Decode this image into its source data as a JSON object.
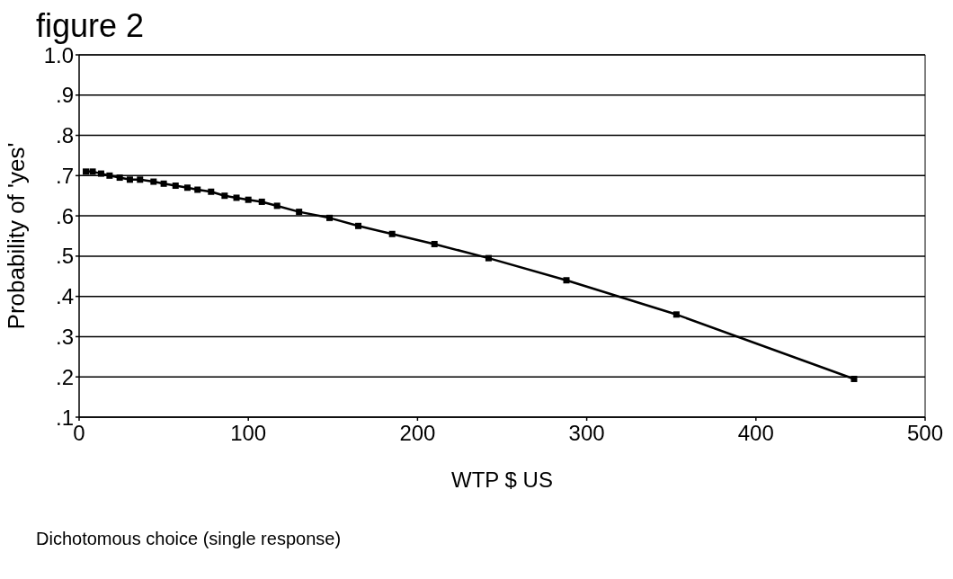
{
  "chart_data": {
    "type": "line",
    "title": "figure 2",
    "xlabel": "WTP $ US",
    "ylabel": "Probability of 'yes'",
    "annotations": [
      "Dichotomous choice  (single response)"
    ],
    "x": [
      4,
      8,
      13,
      18,
      24,
      30,
      36,
      44,
      50,
      57,
      64,
      70,
      78,
      86,
      93,
      100,
      108,
      117,
      130,
      148,
      165,
      185,
      210,
      242,
      288,
      353,
      458
    ],
    "series": [
      {
        "color": "#000000",
        "values": [
          0.71,
          0.71,
          0.705,
          0.7,
          0.695,
          0.69,
          0.69,
          0.685,
          0.68,
          0.675,
          0.67,
          0.665,
          0.66,
          0.65,
          0.645,
          0.64,
          0.635,
          0.625,
          0.61,
          0.595,
          0.575,
          0.555,
          0.53,
          0.495,
          0.44,
          0.355,
          0.195
        ]
      }
    ],
    "xlim": [
      0,
      500
    ],
    "xticks": [
      0,
      100,
      200,
      300,
      400,
      500
    ],
    "ylim": [
      0.1,
      1.0
    ],
    "yticks": [
      {
        "value": 0.1,
        "label": ".1"
      },
      {
        "value": 0.2,
        "label": ".2"
      },
      {
        "value": 0.3,
        "label": ".3"
      },
      {
        "value": 0.4,
        "label": ".4"
      },
      {
        "value": 0.5,
        "label": ".5"
      },
      {
        "value": 0.6,
        "label": ".6"
      },
      {
        "value": 0.7,
        "label": ".7"
      },
      {
        "value": 0.8,
        "label": ".8"
      },
      {
        "value": 0.9,
        "label": ".9"
      },
      {
        "value": 1.0,
        "label": "1.0"
      }
    ],
    "grid": "y",
    "marker": "square",
    "line_style": "solid"
  }
}
